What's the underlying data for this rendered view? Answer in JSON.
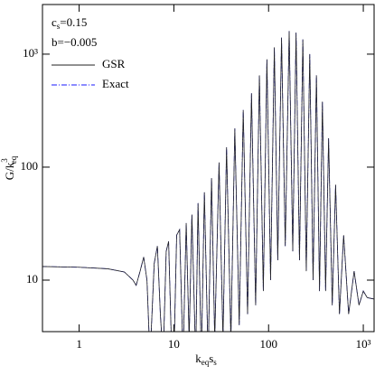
{
  "chart_data": {
    "type": "line",
    "log_x": true,
    "log_y": true,
    "x_label": {
      "main": [
        "k",
        "s"
      ],
      "sub": [
        "eq",
        "s"
      ]
    },
    "y_label": {
      "main": "G/k",
      "sup": "3",
      "sub": "eq"
    },
    "annotations": [
      {
        "main": "c",
        "sub": "s",
        "rest": "=0.15"
      },
      {
        "main": "b=−0.005"
      }
    ],
    "xlim": [
      0.41,
      1300
    ],
    "ylim": [
      3.5,
      2750
    ],
    "xticks": [
      1,
      10,
      100,
      {
        "value": 1000,
        "label": "10³"
      }
    ],
    "yticks": [
      10,
      100,
      {
        "value": 1000,
        "label": "10³"
      }
    ],
    "x": [
      0.4,
      1,
      2,
      3,
      3.7,
      4,
      4.4,
      4.8,
      5.2,
      5.6,
      6.2,
      6.7,
      7.2,
      7.7,
      8.3,
      8.8,
      9.4,
      10,
      10.7,
      11.5,
      12.5,
      13.5,
      14.5,
      15.5,
      17,
      18,
      19.5,
      21,
      23,
      25,
      27,
      30,
      33,
      36,
      40,
      44,
      49,
      54,
      60,
      66,
      73,
      80,
      88,
      96,
      105,
      115,
      125,
      137,
      150,
      165,
      180,
      195,
      212,
      230,
      250,
      272,
      295,
      320,
      345,
      370,
      400,
      430,
      470,
      510,
      560,
      620,
      700,
      800,
      900,
      1000,
      1100,
      1300
    ],
    "series": [
      {
        "name": "Exact",
        "color": "#1a1aff",
        "dash": "6 2 1 2",
        "values": [
          13.2,
          13,
          12.6,
          11.8,
          10,
          9,
          12,
          16,
          10,
          2,
          14,
          20,
          5,
          2,
          18,
          22,
          3,
          2,
          25,
          28,
          2,
          32,
          3,
          38,
          2,
          48,
          2,
          60,
          2,
          80,
          3,
          110,
          3,
          150,
          3,
          220,
          4,
          320,
          5,
          450,
          6,
          650,
          8,
          900,
          10,
          1150,
          15,
          1400,
          20,
          1600,
          18,
          1550,
          15,
          1350,
          12,
          1000,
          10,
          650,
          8,
          380,
          8,
          180,
          6,
          70,
          5,
          25,
          5,
          12,
          6,
          8,
          7,
          6.8
        ]
      },
      {
        "name": "GSR",
        "color": "#222222",
        "dash": "",
        "values": [
          13.2,
          13,
          12.6,
          11.8,
          10,
          9,
          12,
          16,
          10,
          2,
          14,
          20,
          5,
          2,
          18,
          22,
          3,
          2,
          25,
          28,
          2,
          32,
          3,
          38,
          2,
          48,
          2,
          60,
          2,
          80,
          3,
          110,
          3,
          150,
          3,
          220,
          4,
          320,
          5,
          450,
          6,
          650,
          8,
          900,
          10,
          1150,
          15,
          1400,
          20,
          1600,
          18,
          1550,
          15,
          1350,
          12,
          1000,
          10,
          650,
          8,
          380,
          8,
          180,
          6,
          70,
          5,
          25,
          5,
          12,
          6,
          8,
          7,
          6.8
        ]
      }
    ],
    "legend_order": [
      1,
      0
    ]
  }
}
